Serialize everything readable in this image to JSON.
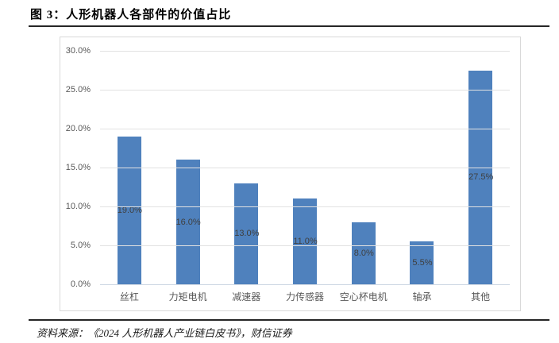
{
  "figure": {
    "title": "图 3：人形机器人各部件的价值占比",
    "source": "资料来源：《2024 人形机器人产业链白皮书》，财信证券"
  },
  "chart_data": {
    "type": "bar",
    "title": "人形机器人各部件的价值占比",
    "categories": [
      "丝杠",
      "力矩电机",
      "减速器",
      "力传感器",
      "空心杯电机",
      "轴承",
      "其他"
    ],
    "values": [
      19.0,
      16.0,
      13.0,
      11.0,
      8.0,
      5.5,
      27.5
    ],
    "data_labels": [
      "19.0%",
      "16.0%",
      "13.0%",
      "11.0%",
      "8.0%",
      "5.5%",
      "27.5%"
    ],
    "data_label_position": "inside-center",
    "xlabel": "",
    "ylabel": "",
    "ylim": [
      0,
      30
    ],
    "ytick_values": [
      0,
      5,
      10,
      15,
      20,
      25,
      30
    ],
    "ytick_labels": [
      "0.0%",
      "5.0%",
      "10.0%",
      "15.0%",
      "20.0%",
      "25.0%",
      "30.0%"
    ],
    "grid": true,
    "legend": false,
    "colors": {
      "bar": "#4F81BD",
      "gridline": "#E2E2E2",
      "axis_line": "#CFD8E4",
      "tick_text": "#595959",
      "data_label_text": "#3F3F3F",
      "frame_border": "#D9D9D9"
    }
  }
}
